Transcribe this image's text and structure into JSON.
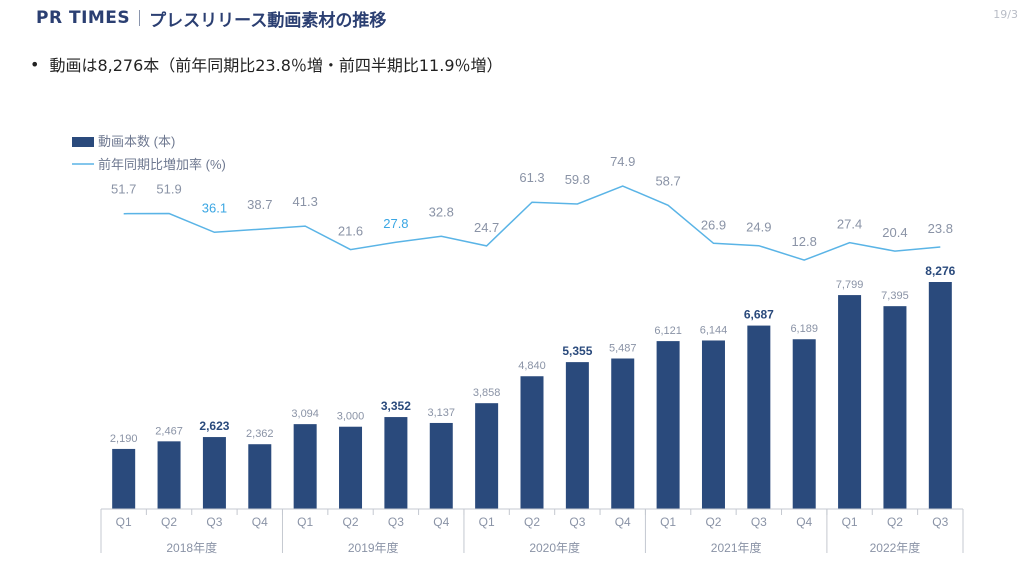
{
  "header": {
    "brand": "PR TIMES",
    "title": "プレスリリース動画素材の推移",
    "page": "19/3"
  },
  "summary": "動画は8,276本（前年同期比23.8％増・前四半期比11.9％増）",
  "chart_data": {
    "type": "bar",
    "categories": [
      "Q1",
      "Q2",
      "Q3",
      "Q4",
      "Q1",
      "Q2",
      "Q3",
      "Q4",
      "Q1",
      "Q2",
      "Q3",
      "Q4",
      "Q1",
      "Q2",
      "Q3",
      "Q4",
      "Q1",
      "Q2",
      "Q3"
    ],
    "year_groups": [
      {
        "label": "2018年度",
        "start": 0,
        "count": 4
      },
      {
        "label": "2019年度",
        "start": 4,
        "count": 4
      },
      {
        "label": "2020年度",
        "start": 8,
        "count": 4
      },
      {
        "label": "2021年度",
        "start": 12,
        "count": 4
      },
      {
        "label": "2022年度",
        "start": 16,
        "count": 3
      }
    ],
    "series": [
      {
        "name": "動画本数 (本)",
        "type": "bar",
        "color": "#2a4a7c",
        "values": [
          2190,
          2467,
          2623,
          2362,
          3094,
          3000,
          3352,
          3137,
          3858,
          4840,
          5355,
          5487,
          6121,
          6144,
          6687,
          6189,
          7799,
          7395,
          8276
        ],
        "labels": [
          "2,190",
          "2,467",
          "2,623",
          "2,362",
          "3,094",
          "3,000",
          "3,352",
          "3,137",
          "3,858",
          "4,840",
          "5,355",
          "5,487",
          "6,121",
          "6,144",
          "6,687",
          "6,189",
          "7,799",
          "7,395",
          "8,276"
        ],
        "highlight": [
          2,
          6,
          10,
          14,
          18
        ]
      },
      {
        "name": "前年同期比増加率 (%)",
        "type": "line",
        "color": "#5ab4e6",
        "values": [
          51.7,
          51.9,
          36.1,
          38.7,
          41.3,
          21.6,
          27.8,
          32.8,
          24.7,
          61.3,
          59.8,
          74.9,
          58.7,
          26.9,
          24.9,
          12.8,
          27.4,
          20.4,
          23.8
        ],
        "labels": [
          "51.7",
          "51.9",
          "36.1",
          "38.7",
          "41.3",
          "21.6",
          "27.8",
          "32.8",
          "24.7",
          "61.3",
          "59.8",
          "74.9",
          "58.7",
          "26.9",
          "24.9",
          "12.8",
          "27.4",
          "20.4",
          "23.8"
        ],
        "highlight": [
          2,
          6
        ]
      }
    ],
    "label_colors": {
      "normal": "#8a93a6",
      "bar_highlight": "#2a4a7c",
      "line_highlight": "#3aa6e3"
    },
    "legend": "top-left",
    "axis_color": "#c4c8d0"
  }
}
